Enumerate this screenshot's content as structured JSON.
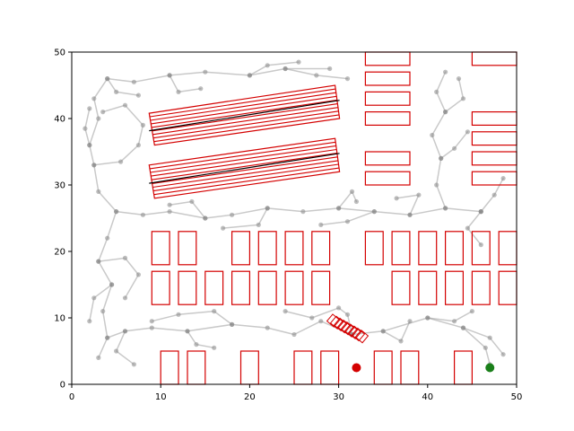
{
  "chart_data": {
    "type": "scatter",
    "title": "",
    "xlabel": "",
    "ylabel": "",
    "xlim": [
      0,
      50
    ],
    "ylim": [
      0,
      50
    ],
    "xticks": [
      "0",
      "10",
      "20",
      "30",
      "40",
      "50"
    ],
    "yticks": [
      "0",
      "10",
      "20",
      "30",
      "40",
      "50"
    ],
    "grid": false,
    "colors": {
      "obstacle": "#d40000",
      "tree": "#888888",
      "path": "#000000",
      "start": "#d40000",
      "goal": "#1a7f1a"
    },
    "obstacles_box": [
      {
        "x": 10,
        "y": 0,
        "w": 2,
        "h": 5
      },
      {
        "x": 13,
        "y": 0,
        "w": 2,
        "h": 5
      },
      {
        "x": 19,
        "y": 0,
        "w": 2,
        "h": 5
      },
      {
        "x": 25,
        "y": 0,
        "w": 2,
        "h": 5
      },
      {
        "x": 28,
        "y": 0,
        "w": 2,
        "h": 5
      },
      {
        "x": 34,
        "y": 0,
        "w": 2,
        "h": 5
      },
      {
        "x": 37,
        "y": 0,
        "w": 2,
        "h": 5
      },
      {
        "x": 43,
        "y": 0,
        "w": 2,
        "h": 5
      },
      {
        "x": 9,
        "y": 12,
        "w": 2,
        "h": 5
      },
      {
        "x": 12,
        "y": 12,
        "w": 2,
        "h": 5
      },
      {
        "x": 15,
        "y": 12,
        "w": 2,
        "h": 5
      },
      {
        "x": 18,
        "y": 12,
        "w": 2,
        "h": 5
      },
      {
        "x": 21,
        "y": 12,
        "w": 2,
        "h": 5
      },
      {
        "x": 24,
        "y": 12,
        "w": 2,
        "h": 5
      },
      {
        "x": 27,
        "y": 12,
        "w": 2,
        "h": 5
      },
      {
        "x": 36,
        "y": 12,
        "w": 2,
        "h": 5
      },
      {
        "x": 39,
        "y": 12,
        "w": 2,
        "h": 5
      },
      {
        "x": 42,
        "y": 12,
        "w": 2,
        "h": 5
      },
      {
        "x": 45,
        "y": 12,
        "w": 2,
        "h": 5
      },
      {
        "x": 48,
        "y": 12,
        "w": 2,
        "h": 5
      },
      {
        "x": 9,
        "y": 18,
        "w": 2,
        "h": 5
      },
      {
        "x": 12,
        "y": 18,
        "w": 2,
        "h": 5
      },
      {
        "x": 18,
        "y": 18,
        "w": 2,
        "h": 5
      },
      {
        "x": 21,
        "y": 18,
        "w": 2,
        "h": 5
      },
      {
        "x": 24,
        "y": 18,
        "w": 2,
        "h": 5
      },
      {
        "x": 27,
        "y": 18,
        "w": 2,
        "h": 5
      },
      {
        "x": 33,
        "y": 18,
        "w": 2,
        "h": 5
      },
      {
        "x": 36,
        "y": 18,
        "w": 2,
        "h": 5
      },
      {
        "x": 39,
        "y": 18,
        "w": 2,
        "h": 5
      },
      {
        "x": 42,
        "y": 18,
        "w": 2,
        "h": 5
      },
      {
        "x": 45,
        "y": 18,
        "w": 2,
        "h": 5
      },
      {
        "x": 48,
        "y": 18,
        "w": 2,
        "h": 5
      },
      {
        "x": 33,
        "y": 30,
        "w": 5,
        "h": 2
      },
      {
        "x": 33,
        "y": 33,
        "w": 5,
        "h": 2
      },
      {
        "x": 33,
        "y": 39,
        "w": 5,
        "h": 2
      },
      {
        "x": 33,
        "y": 42,
        "w": 5,
        "h": 2
      },
      {
        "x": 33,
        "y": 45,
        "w": 5,
        "h": 2
      },
      {
        "x": 33,
        "y": 48,
        "w": 5,
        "h": 2
      },
      {
        "x": 45,
        "y": 30,
        "w": 5,
        "h": 2
      },
      {
        "x": 45,
        "y": 33,
        "w": 5,
        "h": 2
      },
      {
        "x": 45,
        "y": 36,
        "w": 5,
        "h": 2
      },
      {
        "x": 45,
        "y": 39,
        "w": 5,
        "h": 2
      },
      {
        "x": 45,
        "y": 48,
        "w": 5,
        "h": 2
      }
    ],
    "obstacles_slanted": [
      [
        [
          8.7,
          40.8
        ],
        [
          29.6,
          45.0
        ],
        [
          30.1,
          40.0
        ],
        [
          9.3,
          36.0
        ]
      ],
      [
        [
          8.7,
          33.0
        ],
        [
          29.6,
          37.0
        ],
        [
          30.1,
          32.0
        ],
        [
          9.3,
          28.0
        ]
      ]
    ],
    "small_obstacles": [
      [
        29.4,
        9.6
      ],
      [
        29.8,
        9.3
      ],
      [
        30.2,
        9.0
      ],
      [
        30.6,
        8.7
      ],
      [
        31.0,
        8.4
      ],
      [
        31.4,
        8.1
      ],
      [
        31.8,
        7.8
      ],
      [
        32.2,
        7.5
      ],
      [
        32.6,
        7.2
      ]
    ],
    "start": {
      "x": 32,
      "y": 2.5
    },
    "goal": {
      "x": 47,
      "y": 2.5
    },
    "tree_paths": [
      [
        [
          47.0,
          3.0
        ],
        [
          46.5,
          5.5
        ],
        [
          44.0,
          8.5
        ],
        [
          40.0,
          10.0
        ],
        [
          35.0,
          8.0
        ],
        [
          31.5,
          7.5
        ],
        [
          28.0,
          9.5
        ],
        [
          25.0,
          7.5
        ],
        [
          22.0,
          8.5
        ],
        [
          18.0,
          9.0
        ],
        [
          13.0,
          8.0
        ],
        [
          9.0,
          8.5
        ],
        [
          6.0,
          8.0
        ],
        [
          4.0,
          7.0
        ],
        [
          3.0,
          4.0
        ]
      ],
      [
        [
          44.0,
          8.5
        ],
        [
          47.0,
          7.0
        ],
        [
          48.5,
          4.5
        ]
      ],
      [
        [
          40.0,
          10.0
        ],
        [
          43.0,
          9.5
        ],
        [
          45.0,
          11.0
        ]
      ],
      [
        [
          35.0,
          8.0
        ],
        [
          37.0,
          6.5
        ],
        [
          38.0,
          9.5
        ]
      ],
      [
        [
          31.5,
          7.5
        ],
        [
          31.0,
          10.5
        ],
        [
          30.0,
          11.5
        ],
        [
          27.0,
          10.0
        ],
        [
          24.0,
          11.0
        ]
      ],
      [
        [
          18.0,
          9.0
        ],
        [
          16.0,
          11.0
        ],
        [
          12.0,
          10.5
        ],
        [
          9.0,
          9.5
        ]
      ],
      [
        [
          13.0,
          8.0
        ],
        [
          14.0,
          6.0
        ],
        [
          16.0,
          5.5
        ]
      ],
      [
        [
          6.0,
          8.0
        ],
        [
          5.0,
          5.0
        ],
        [
          7.0,
          3.0
        ]
      ],
      [
        [
          4.0,
          7.0
        ],
        [
          3.5,
          11.0
        ],
        [
          4.5,
          15.0
        ],
        [
          3.0,
          18.5
        ],
        [
          4.0,
          22.0
        ],
        [
          5.0,
          26.0
        ],
        [
          8.0,
          25.5
        ],
        [
          11.0,
          26.0
        ],
        [
          15.0,
          25.0
        ],
        [
          18.0,
          25.5
        ],
        [
          22.0,
          26.5
        ],
        [
          26.0,
          26.0
        ],
        [
          30.0,
          26.5
        ],
        [
          34.0,
          26.0
        ],
        [
          38.0,
          25.5
        ],
        [
          42.0,
          26.5
        ],
        [
          46.0,
          26.0
        ]
      ],
      [
        [
          3.0,
          18.5
        ],
        [
          6.0,
          19.0
        ],
        [
          7.5,
          16.5
        ],
        [
          6.0,
          13.0
        ]
      ],
      [
        [
          4.5,
          15.0
        ],
        [
          2.5,
          13.0
        ],
        [
          2.0,
          9.5
        ]
      ],
      [
        [
          5.0,
          26.0
        ],
        [
          3.0,
          29.0
        ],
        [
          2.5,
          33.0
        ],
        [
          2.0,
          36.0
        ],
        [
          3.0,
          40.0
        ],
        [
          2.5,
          43.0
        ],
        [
          4.0,
          46.0
        ],
        [
          7.0,
          45.5
        ],
        [
          11.0,
          46.5
        ],
        [
          15.0,
          47.0
        ],
        [
          20.0,
          46.5
        ],
        [
          24.0,
          47.5
        ],
        [
          29.0,
          47.5
        ]
      ],
      [
        [
          2.5,
          33.0
        ],
        [
          5.5,
          33.5
        ],
        [
          7.5,
          36.0
        ],
        [
          8.0,
          39.0
        ],
        [
          6.0,
          42.0
        ],
        [
          3.5,
          41.0
        ]
      ],
      [
        [
          2.0,
          36.0
        ],
        [
          1.5,
          38.5
        ],
        [
          2.0,
          41.5
        ]
      ],
      [
        [
          4.0,
          46.0
        ],
        [
          5.0,
          44.0
        ],
        [
          7.5,
          43.5
        ]
      ],
      [
        [
          11.0,
          46.5
        ],
        [
          12.0,
          44.0
        ],
        [
          14.5,
          44.5
        ]
      ],
      [
        [
          20.0,
          46.5
        ],
        [
          22.0,
          48.0
        ],
        [
          25.5,
          48.5
        ]
      ],
      [
        [
          24.0,
          47.5
        ],
        [
          27.5,
          46.5
        ],
        [
          31.0,
          46.0
        ]
      ],
      [
        [
          46.0,
          26.0
        ],
        [
          47.5,
          28.5
        ],
        [
          48.5,
          31.0
        ]
      ],
      [
        [
          42.0,
          26.5
        ],
        [
          41.0,
          30.0
        ],
        [
          41.5,
          34.0
        ],
        [
          40.5,
          37.5
        ],
        [
          42.0,
          41.0
        ],
        [
          41.0,
          44.0
        ],
        [
          42.0,
          47.0
        ]
      ],
      [
        [
          41.5,
          34.0
        ],
        [
          43.0,
          35.5
        ],
        [
          44.5,
          38.0
        ]
      ],
      [
        [
          42.0,
          41.0
        ],
        [
          44.0,
          43.0
        ],
        [
          43.5,
          46.0
        ]
      ],
      [
        [
          38.0,
          25.5
        ],
        [
          39.0,
          28.5
        ],
        [
          36.5,
          28.0
        ]
      ],
      [
        [
          34.0,
          26.0
        ],
        [
          31.0,
          24.5
        ],
        [
          28.0,
          24.0
        ]
      ],
      [
        [
          22.0,
          26.5
        ],
        [
          21.0,
          24.0
        ],
        [
          17.0,
          23.5
        ]
      ],
      [
        [
          15.0,
          25.0
        ],
        [
          13.5,
          27.5
        ],
        [
          11.0,
          27.0
        ]
      ],
      [
        [
          46.0,
          26.0
        ],
        [
          44.5,
          23.5
        ],
        [
          46.0,
          21.0
        ]
      ],
      [
        [
          30.0,
          26.5
        ],
        [
          31.5,
          29.0
        ],
        [
          32.0,
          27.5
        ]
      ]
    ]
  }
}
